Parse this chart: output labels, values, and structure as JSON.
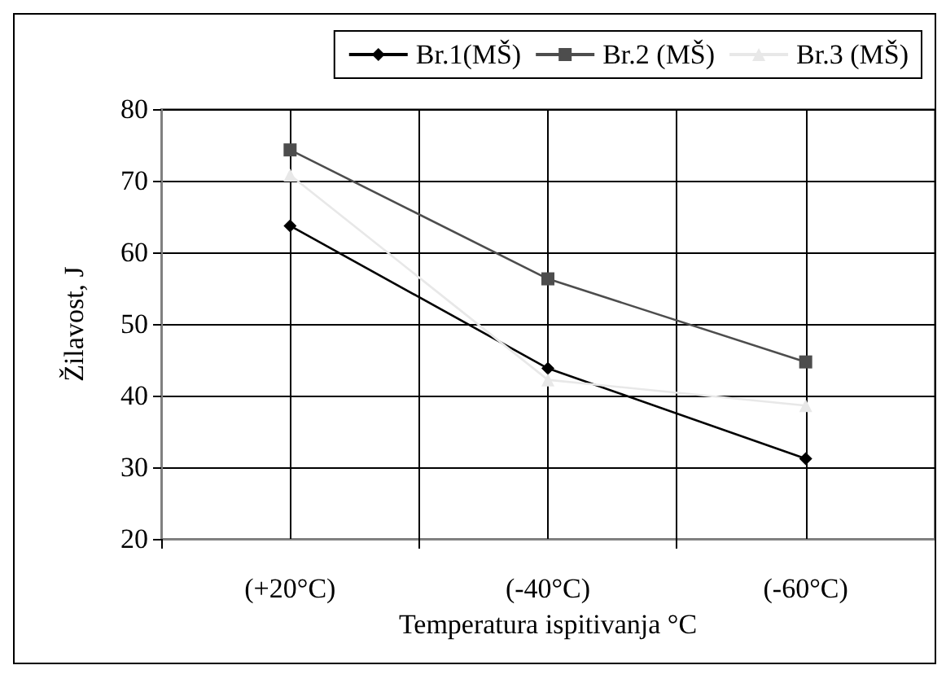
{
  "chart_data": {
    "type": "line",
    "xlabel": "Temperatura ispitivanja °C",
    "ylabel": "Žilavost, J",
    "categories": [
      "(+20°C)",
      "(-40°C)",
      "(-60°C)"
    ],
    "series": [
      {
        "name": "Br.1(MŠ)",
        "color": "#000000",
        "marker": "diamond",
        "values": [
          63.7,
          43.8,
          31.2
        ]
      },
      {
        "name": "Br.2 (MŠ)",
        "color": "#4d4d4d",
        "marker": "square",
        "values": [
          74.3,
          56.3,
          44.7
        ]
      },
      {
        "name": "Br.3 (MŠ)",
        "color": "#e8e8e8",
        "marker": "triangle",
        "values": [
          70.8,
          42.2,
          38.6
        ]
      }
    ],
    "ylim": [
      20,
      80
    ],
    "yticks": [
      20,
      30,
      40,
      50,
      60,
      70,
      80
    ],
    "grid": true,
    "legend": "top right"
  }
}
